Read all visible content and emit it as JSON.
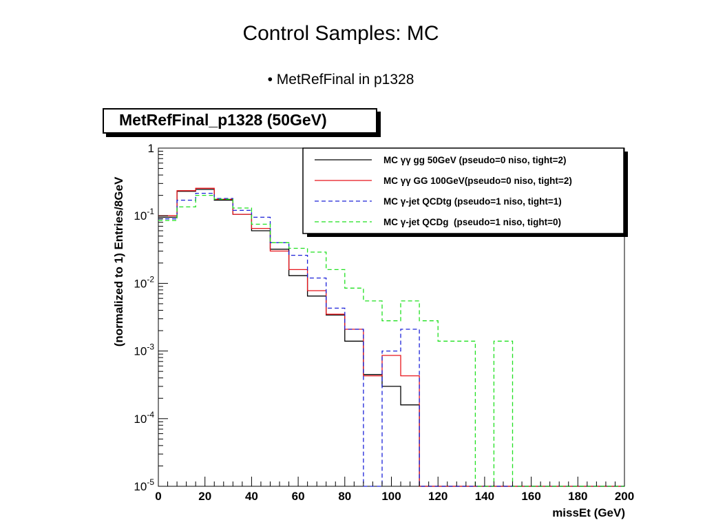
{
  "slide": {
    "title": "Control Samples: MC",
    "bullet": "• MetRefFinal in p1328"
  },
  "chart_data": {
    "type": "line",
    "style": "step-histogram",
    "title": "MetRefFinal_p1328 (50GeV)",
    "xlabel": "missEt (GeV)",
    "ylabel": "(normalized to 1) Entries/8GeV",
    "xlim": [
      0,
      200
    ],
    "ylim": [
      1e-05,
      1
    ],
    "yscale": "log",
    "xticks": [
      0,
      20,
      40,
      60,
      80,
      100,
      120,
      140,
      160,
      180,
      200
    ],
    "yticks": [
      {
        "value": 1,
        "base": "1",
        "exp": ""
      },
      {
        "value": 0.1,
        "base": "10",
        "exp": "-1"
      },
      {
        "value": 0.01,
        "base": "10",
        "exp": "-2"
      },
      {
        "value": 0.001,
        "base": "10",
        "exp": "-3"
      },
      {
        "value": 0.0001,
        "base": "10",
        "exp": "-4"
      },
      {
        "value": 1e-05,
        "base": "10",
        "exp": "-5"
      }
    ],
    "bin_edges": [
      0,
      8,
      16,
      24,
      32,
      40,
      48,
      56,
      64,
      72,
      80,
      88,
      96,
      104,
      112,
      120,
      128,
      136,
      144,
      152,
      160,
      168,
      176,
      184,
      192,
      200
    ],
    "legend_position": "top-right",
    "grid": false,
    "series": [
      {
        "name": "MC γγ gg 50GeV (pseudo=0 niso, tight=2)",
        "color": "#000000",
        "dash": "solid",
        "values": [
          0.095,
          0.23,
          0.245,
          0.17,
          0.105,
          0.06,
          0.032,
          0.013,
          0.0065,
          0.0034,
          0.0014,
          0.00045,
          0.0003,
          0.00016,
          0,
          0,
          0,
          0,
          0,
          0,
          0,
          0,
          0,
          0,
          0
        ]
      },
      {
        "name": "MC γγ GG 100GeV(pseudo=0 niso, tight=2)",
        "color": "#e8141b",
        "dash": "solid",
        "values": [
          0.1,
          0.235,
          0.255,
          0.175,
          0.105,
          0.065,
          0.03,
          0.016,
          0.0078,
          0.0035,
          0.0021,
          0.00043,
          0.00086,
          0.00043,
          0,
          0,
          0,
          0,
          0,
          0,
          0,
          0,
          0,
          0,
          0
        ]
      },
      {
        "name": "MC γ-jet QCDtg (pseudo=1 niso, tight=1)",
        "color": "#1a20d8",
        "dash": "dash",
        "values": [
          0.09,
          0.17,
          0.215,
          0.18,
          0.12,
          0.095,
          0.04,
          0.026,
          0.012,
          0.0043,
          0.0021,
          0,
          0.001,
          0.0021,
          0,
          0,
          0,
          0,
          0,
          0,
          0,
          0,
          0,
          0,
          0
        ]
      },
      {
        "name": "MC γ-jet QCDg  (pseudo=1 niso, tight=0)",
        "color": "#1fe01f",
        "dash": "dash",
        "values": [
          0.085,
          0.135,
          0.2,
          0.175,
          0.13,
          0.075,
          0.04,
          0.033,
          0.029,
          0.016,
          0.0085,
          0.0055,
          0.0028,
          0.0055,
          0.0028,
          0.0014,
          0.0014,
          0,
          0.0014,
          0,
          0,
          0,
          0,
          0,
          0
        ]
      }
    ]
  }
}
